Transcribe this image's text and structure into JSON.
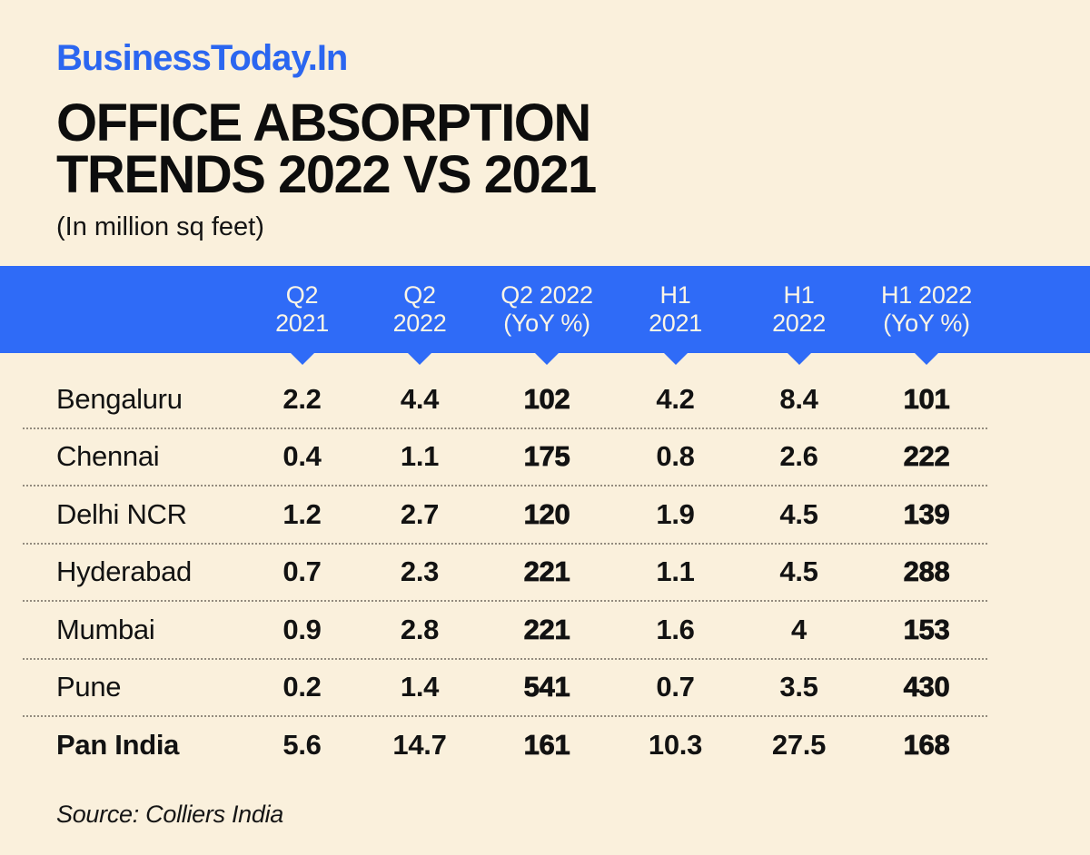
{
  "page": {
    "brand": "BusinessToday.In",
    "title_line1": "OFFICE ABSORPTION",
    "title_line2": "TRENDS 2022 VS 2021",
    "subtitle": "(In million sq feet)",
    "source": "Source: Colliers India"
  },
  "colors": {
    "background": "#FAF0DC",
    "accent_blue": "#2F6BF7",
    "logo_blue": "#2B66F0",
    "header_text": "#FCF5E6",
    "text_black": "#121212",
    "divider_gray": "#938B7E"
  },
  "chart_data": {
    "type": "table",
    "title": "Office Absorption Trends 2022 vs 2021",
    "units": "million sq feet",
    "source": "Colliers India",
    "columns": [
      {
        "line1": "Q2",
        "line2": "2021",
        "emphasis": false
      },
      {
        "line1": "Q2",
        "line2": "2022",
        "emphasis": false
      },
      {
        "line1": "Q2 2022",
        "line2": "(YoY %)",
        "emphasis": true
      },
      {
        "line1": "H1",
        "line2": "2021",
        "emphasis": false
      },
      {
        "line1": "H1",
        "line2": "2022",
        "emphasis": false
      },
      {
        "line1": "H1 2022",
        "line2": "(YoY %)",
        "emphasis": true
      }
    ],
    "rows": [
      {
        "city": "Bengaluru",
        "values": [
          "2.2",
          "4.4",
          "102",
          "4.2",
          "8.4",
          "101"
        ]
      },
      {
        "city": "Chennai",
        "values": [
          "0.4",
          "1.1",
          "175",
          "0.8",
          "2.6",
          "222"
        ]
      },
      {
        "city": "Delhi NCR",
        "values": [
          "1.2",
          "2.7",
          "120",
          "1.9",
          "4.5",
          "139"
        ]
      },
      {
        "city": "Hyderabad",
        "values": [
          "0.7",
          "2.3",
          "221",
          "1.1",
          "4.5",
          "288"
        ]
      },
      {
        "city": "Mumbai",
        "values": [
          "0.9",
          "2.8",
          "221",
          "1.6",
          "4",
          "153"
        ]
      },
      {
        "city": "Pune",
        "values": [
          "0.2",
          "1.4",
          "541",
          "0.7",
          "3.5",
          "430"
        ]
      },
      {
        "city": "Pan India",
        "values": [
          "5.6",
          "14.7",
          "161",
          "10.3",
          "27.5",
          "168"
        ],
        "bold": true
      }
    ]
  }
}
